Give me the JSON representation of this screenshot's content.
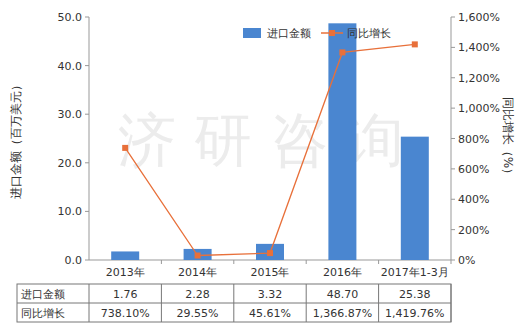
{
  "chart_data": {
    "type": "bar",
    "categories": [
      "2013年",
      "2014年",
      "2015年",
      "2016年",
      "2017年1-3月"
    ],
    "series": [
      {
        "name": "进口金额",
        "type": "bar",
        "color": "#4a86d0",
        "values": [
          1.76,
          2.28,
          3.32,
          48.7,
          25.38
        ],
        "value_labels": [
          "1.76",
          "2.28",
          "3.32",
          "48.70",
          "25.38"
        ]
      },
      {
        "name": "同比增长",
        "type": "line",
        "axis": "y2",
        "color": "#e8703a",
        "marker": "square",
        "values": [
          738.1,
          29.55,
          45.61,
          1366.87,
          1419.76
        ],
        "value_labels": [
          "738.10%",
          "29.55%",
          "45.61%",
          "1,366.87%",
          "1,419.76%"
        ]
      }
    ],
    "ylabel": "进口金额（百万美元）",
    "y2label": "同比增长（%）",
    "ylim": [
      0,
      50
    ],
    "yticks": [
      {
        "value": 0,
        "label": "0.0"
      },
      {
        "value": 10,
        "label": "10.0"
      },
      {
        "value": 20,
        "label": "20.0"
      },
      {
        "value": 30,
        "label": "30.0"
      },
      {
        "value": 40,
        "label": "40.0"
      },
      {
        "value": 50,
        "label": "50.0"
      }
    ],
    "y2lim": [
      0,
      1600
    ],
    "y2ticks": [
      {
        "value": 0,
        "label": "0%"
      },
      {
        "value": 200,
        "label": "200%"
      },
      {
        "value": 400,
        "label": "400%"
      },
      {
        "value": 600,
        "label": "600%"
      },
      {
        "value": 800,
        "label": "800%"
      },
      {
        "value": 1000,
        "label": "1,000%"
      },
      {
        "value": 1200,
        "label": "1,200%"
      },
      {
        "value": 1400,
        "label": "1,400%"
      },
      {
        "value": 1600,
        "label": "1,600%"
      }
    ],
    "grid": false,
    "legend": "top",
    "annotations": [
      "济研咨询"
    ]
  }
}
